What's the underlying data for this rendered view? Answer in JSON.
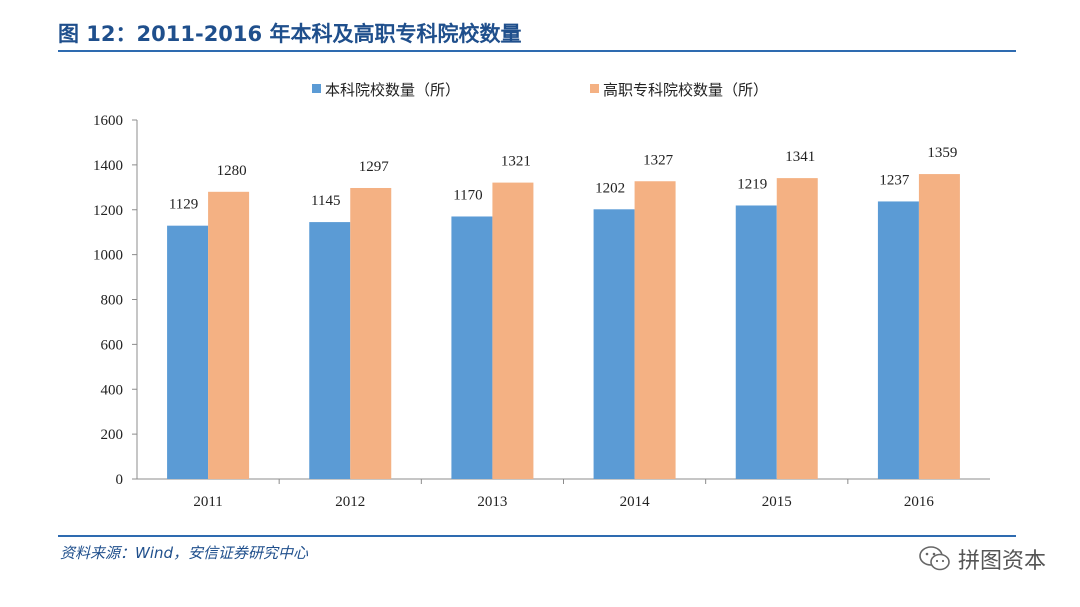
{
  "header": {
    "title": "图 12：2011-2016 年本科及高职专科院校数量"
  },
  "footer": {
    "source": "资料来源：Wind，安信证券研究中心",
    "watermark": "拼图资本"
  },
  "colors": {
    "series1": "#5b9bd5",
    "series2": "#f4b183",
    "rule": "#2e6bb0",
    "title": "#1f4f8c"
  },
  "chart_data": {
    "type": "bar",
    "title": "",
    "xlabel": "",
    "ylabel": "",
    "categories": [
      "2011",
      "2012",
      "2013",
      "2014",
      "2015",
      "2016"
    ],
    "series": [
      {
        "name": "本科院校数量（所）",
        "values": [
          1129,
          1145,
          1170,
          1202,
          1219,
          1237
        ]
      },
      {
        "name": "高职专科院校数量（所）",
        "values": [
          1280,
          1297,
          1321,
          1327,
          1341,
          1359
        ]
      }
    ],
    "ylim": [
      0,
      1600
    ],
    "yticks": [
      0,
      200,
      400,
      600,
      800,
      1000,
      1200,
      1400,
      1600
    ],
    "grid": false,
    "legend": "top-center"
  }
}
